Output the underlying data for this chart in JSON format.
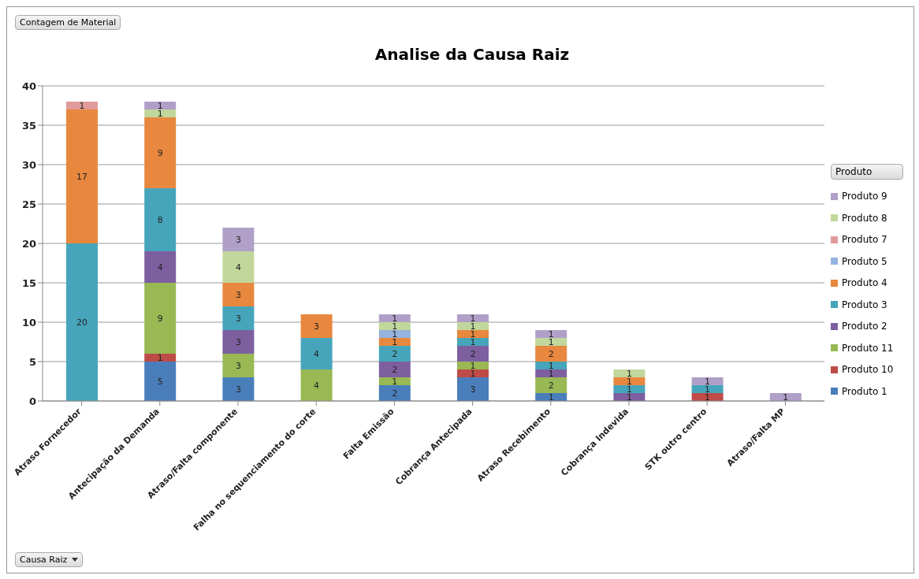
{
  "chart_data": {
    "type": "bar",
    "stacked": true,
    "title": "Analise da Causa Raiz",
    "legend_title": "Produto",
    "annotations": [
      "Contagem de Material",
      "Causa Raiz"
    ],
    "categories": [
      "Atraso Fornecedor",
      "Antecipação da Demanda",
      "Atraso/Falta componente",
      "Falha no sequenciamento do corte",
      "Falta Emissão",
      "Cobrança Antecipada",
      "Atraso Recebimento",
      "Cobrança Indevida",
      "STK outro centro",
      "Atraso/Falta MP"
    ],
    "series": [
      {
        "name": "Produto 1",
        "color": "#4a7ebb",
        "values": [
          null,
          5,
          3,
          null,
          2,
          3,
          1,
          null,
          null,
          null
        ]
      },
      {
        "name": "Produto 10",
        "color": "#be4b48",
        "values": [
          null,
          1,
          null,
          null,
          null,
          1,
          null,
          null,
          1,
          null
        ]
      },
      {
        "name": "Produto 11",
        "color": "#98b954",
        "values": [
          null,
          9,
          3,
          4,
          1,
          1,
          2,
          null,
          null,
          null
        ]
      },
      {
        "name": "Produto 2",
        "color": "#7d5fa0",
        "values": [
          null,
          4,
          3,
          null,
          2,
          2,
          1,
          1,
          null,
          null
        ]
      },
      {
        "name": "Produto 3",
        "color": "#46a5bb",
        "values": [
          20,
          8,
          3,
          4,
          2,
          1,
          1,
          1,
          1,
          null
        ]
      },
      {
        "name": "Produto 4",
        "color": "#e8883e",
        "values": [
          17,
          9,
          3,
          3,
          1,
          1,
          2,
          1,
          null,
          null
        ]
      },
      {
        "name": "Produto 5",
        "color": "#94b3de",
        "values": [
          null,
          null,
          null,
          null,
          1,
          null,
          null,
          null,
          null,
          null
        ]
      },
      {
        "name": "Produto 7",
        "color": "#e09a9a",
        "values": [
          1,
          null,
          null,
          null,
          null,
          null,
          null,
          null,
          null,
          null
        ]
      },
      {
        "name": "Produto 8",
        "color": "#c1d79c",
        "values": [
          null,
          1,
          4,
          null,
          1,
          1,
          1,
          1,
          null,
          null
        ]
      },
      {
        "name": "Produto 9",
        "color": "#b0a0c8",
        "values": [
          null,
          1,
          3,
          null,
          1,
          1,
          1,
          null,
          1,
          1
        ]
      }
    ],
    "ylim": [
      0,
      40
    ],
    "yticks": [
      0,
      5,
      10,
      15,
      20,
      25,
      30,
      35,
      40
    ],
    "grid": "y",
    "legend": "right",
    "data_labels": true
  }
}
